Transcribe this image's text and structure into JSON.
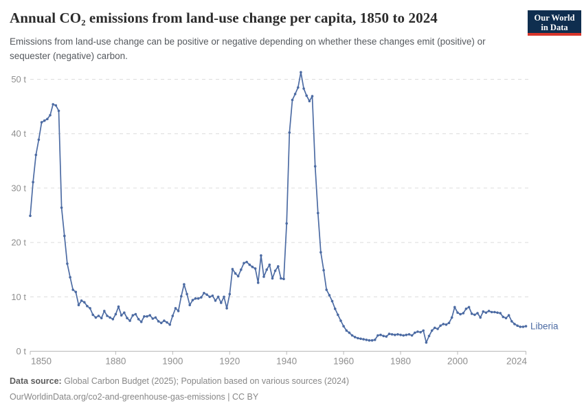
{
  "header": {
    "title": "Annual CO₂ emissions from land-use change per capita, 1850 to 2024",
    "subtitle": "Emissions from land-use change can be positive or negative depending on whether these changes emit (positive) or sequester (negative) carbon.",
    "logo_line1": "Our World",
    "logo_line2": "in Data"
  },
  "footer": {
    "source_label": "Data source:",
    "source_text": " Global Carbon Budget (2025); Population based on various sources (2024)",
    "link_line": "OurWorldinData.org/co2-and-greenhouse-gas-emissions | CC BY"
  },
  "colors": {
    "line": "#4c6ba3",
    "grid": "#dcdcdc",
    "axis": "#b8b8b8",
    "tick_label": "#8f8f8f",
    "logo_bg": "#0f2e4f",
    "logo_stripe": "#d8352a"
  },
  "chart_data": {
    "type": "line",
    "title": "Annual CO₂ emissions from land-use change per capita, 1850 to 2024",
    "subtitle": "Emissions from land-use change can be positive or negative depending on whether these changes emit (positive) or sequester (negative) carbon.",
    "xlabel": "",
    "ylabel": "",
    "xlim": [
      1850,
      2024
    ],
    "ylim": [
      0,
      52.5
    ],
    "x_ticks": [
      1850,
      1880,
      1900,
      1920,
      1940,
      1960,
      1980,
      2000,
      2024
    ],
    "y_ticks": [
      0,
      10,
      20,
      30,
      40,
      50
    ],
    "y_tick_suffix": " t",
    "grid": "horizontal-dashed",
    "legend_position": "end-of-line-label",
    "series": [
      {
        "name": "Liberia",
        "color": "#4c6ba3",
        "year_start": 1850,
        "year_end": 2024,
        "values": [
          24.9,
          31.1,
          36.1,
          38.9,
          42.1,
          42.4,
          42.7,
          43.4,
          45.4,
          45.2,
          44.2,
          26.4,
          21.2,
          16.1,
          13.6,
          11.3,
          10.9,
          8.5,
          9.3,
          9.0,
          8.3,
          7.9,
          6.7,
          6.2,
          6.5,
          6.1,
          7.4,
          6.5,
          6.2,
          5.9,
          6.8,
          8.2,
          6.6,
          7.1,
          6.1,
          5.6,
          6.6,
          6.8,
          5.9,
          5.4,
          6.4,
          6.4,
          6.6,
          6.0,
          6.2,
          5.5,
          5.2,
          5.6,
          5.3,
          4.9,
          6.5,
          7.9,
          7.4,
          10.1,
          12.3,
          10.5,
          8.5,
          9.4,
          9.7,
          9.7,
          9.9,
          10.7,
          10.4,
          10.0,
          10.2,
          9.3,
          10.0,
          8.9,
          10.0,
          7.9,
          10.5,
          15.1,
          14.3,
          13.8,
          15.0,
          16.2,
          16.4,
          15.9,
          15.5,
          15.2,
          12.6,
          17.6,
          13.7,
          15.0,
          15.9,
          13.4,
          14.8,
          15.6,
          13.4,
          13.3,
          23.5,
          40.2,
          46.2,
          47.3,
          48.5,
          51.3,
          48.3,
          47.0,
          46.0,
          46.9,
          34.0,
          25.4,
          18.2,
          14.9,
          11.3,
          10.3,
          9.2,
          7.8,
          6.7,
          5.6,
          4.6,
          3.8,
          3.4,
          2.9,
          2.6,
          2.4,
          2.3,
          2.2,
          2.1,
          2.0,
          2.0,
          2.1,
          2.9,
          3.0,
          2.8,
          2.7,
          3.2,
          3.1,
          3.0,
          3.1,
          3.0,
          2.9,
          3.0,
          3.1,
          2.9,
          3.4,
          3.6,
          3.5,
          3.8,
          1.6,
          2.8,
          3.8,
          4.3,
          4.1,
          4.7,
          5.0,
          4.9,
          5.2,
          6.2,
          8.1,
          7.1,
          6.8,
          7.0,
          7.8,
          8.1,
          6.9,
          6.7,
          7.0,
          6.2,
          7.3,
          7.1,
          7.4,
          7.2,
          7.2,
          7.1,
          7.0,
          6.3,
          6.1,
          6.6,
          5.5,
          5.0,
          4.7,
          4.5,
          4.5,
          4.6
        ]
      }
    ]
  }
}
